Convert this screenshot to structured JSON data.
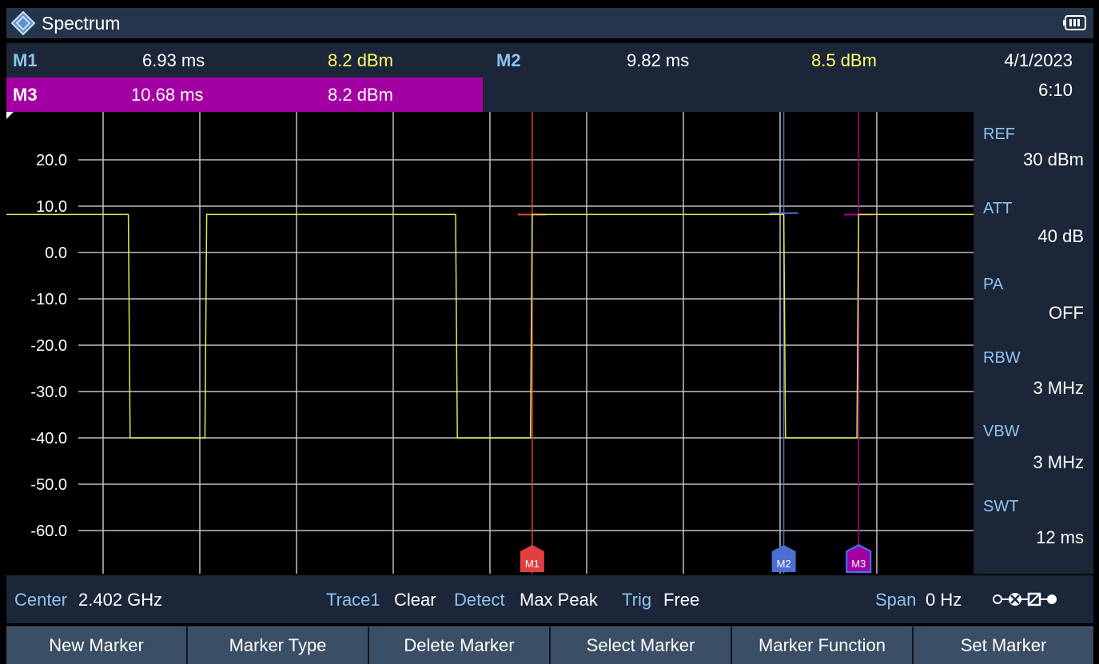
{
  "app": {
    "title": "Spectrum",
    "logo_icon": "rs-diamond-icon",
    "battery_icon": "battery-icon"
  },
  "markers": [
    {
      "label": "M1",
      "time": "6.93 ms",
      "level": "8.2 dBm",
      "color": "#e04040"
    },
    {
      "label": "M2",
      "time": "9.82 ms",
      "level": "8.5 dBm",
      "color": "#4a6fd0"
    },
    {
      "label": "M3",
      "time": "10.68 ms",
      "level": "8.2 dBm",
      "color": "#a300a3"
    }
  ],
  "datetime": {
    "date": "4/1/2023",
    "time": "6:10"
  },
  "settings": [
    {
      "label": "REF",
      "value": "30 dBm"
    },
    {
      "label": "ATT",
      "value": "40 dB"
    },
    {
      "label": "PA",
      "value": "OFF"
    },
    {
      "label": "RBW",
      "value": "3 MHz"
    },
    {
      "label": "VBW",
      "value": "3 MHz"
    },
    {
      "label": "SWT",
      "value": "12 ms"
    }
  ],
  "status": {
    "center_label": "Center",
    "center_value": "2.402 GHz",
    "trace_label": "Trace1",
    "trace_value": "Clear",
    "detect_label": "Detect",
    "detect_value": "Max Peak",
    "trig_label": "Trig",
    "trig_value": "Free",
    "span_label": "Span",
    "span_value": "0 Hz",
    "connection_icon": "connection-status-icon"
  },
  "softkeys": [
    "New Marker",
    "Marker Type",
    "Delete Marker",
    "Select Marker",
    "Marker Function",
    "Set Marker"
  ],
  "chart_data": {
    "type": "line",
    "x_unit": "ms",
    "xlim": [
      0,
      12
    ],
    "ylim": [
      -70,
      30
    ],
    "y_ticks": [
      "20.0",
      "10.0",
      "0.0",
      "-10.0",
      "-20.0",
      "-30.0",
      "-40.0",
      "-50.0",
      "-60.0"
    ],
    "grid": true,
    "trace_color": "#e6e64d",
    "series": [
      {
        "x": [
          0,
          2.29,
          2.31,
          3.17,
          3.19,
          6.05,
          6.07,
          6.91,
          6.93,
          9.82,
          9.84,
          10.66,
          10.68,
          12
        ],
        "values": [
          8.2,
          8.2,
          -40,
          -40,
          8.2,
          8.2,
          -40,
          -40,
          8.2,
          8.2,
          -40,
          -40,
          8.2,
          8.2
        ]
      }
    ],
    "marker_x": [
      6.93,
      9.82,
      10.68
    ],
    "marker_y": [
      8.2,
      8.5,
      8.2
    ]
  }
}
